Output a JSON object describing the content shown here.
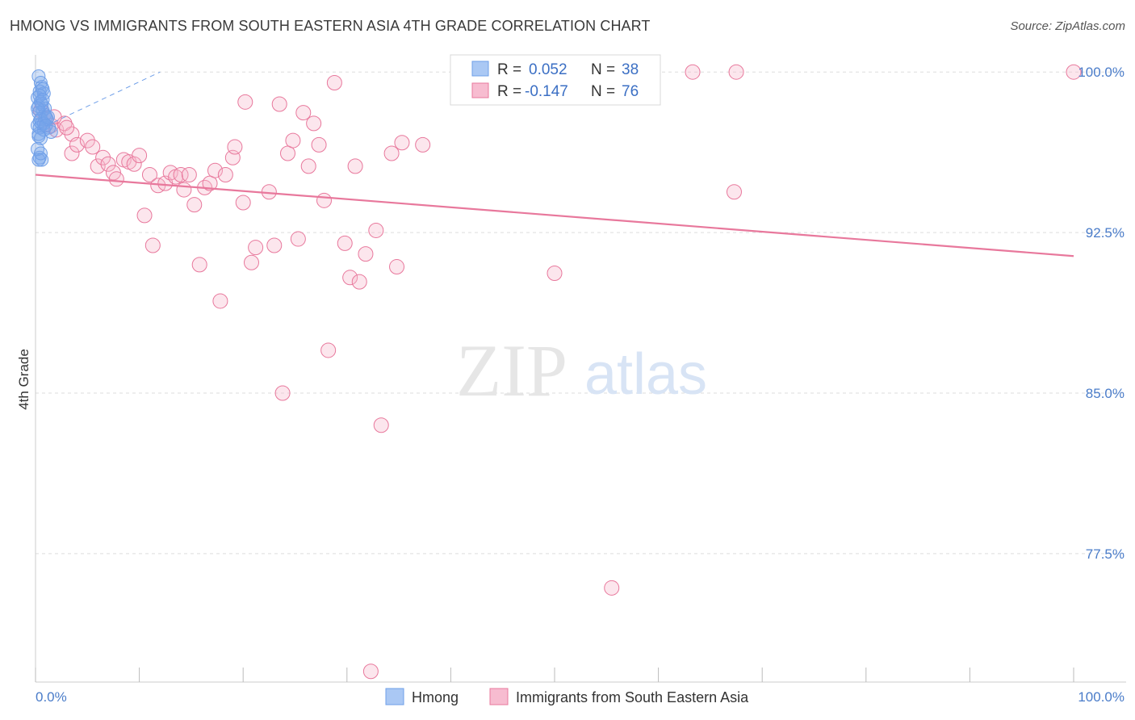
{
  "title": "HMONG VS IMMIGRANTS FROM SOUTH EASTERN ASIA 4TH GRADE CORRELATION CHART",
  "source": "Source: ZipAtlas.com",
  "watermark": {
    "zip": "ZIP",
    "atlas": "atlas"
  },
  "chart_data": {
    "type": "scatter",
    "title": "HMONG VS IMMIGRANTS FROM SOUTH EASTERN ASIA 4TH GRADE CORRELATION CHART",
    "xlabel": "",
    "ylabel": "4th Grade",
    "xlim": [
      0,
      100
    ],
    "ylim": [
      71.5,
      100.8
    ],
    "x_tick_labels": {
      "left": "0.0%",
      "right": "100.0%"
    },
    "y_ticks": [
      {
        "value": 100.0,
        "label": "100.0%"
      },
      {
        "value": 92.5,
        "label": "92.5%"
      },
      {
        "value": 85.0,
        "label": "85.0%"
      },
      {
        "value": 77.5,
        "label": "77.5%"
      }
    ],
    "grid": true,
    "legend": [
      {
        "name": "Hmong",
        "r_label": "R =",
        "r": "0.052",
        "n_label": "N =",
        "n": "38",
        "color": "#6f9fe8",
        "fill": "#aac8f4"
      },
      {
        "name": "Immigrants from South Eastern Asia",
        "r_label": "R =",
        "r": "-0.147",
        "n_label": "N =",
        "n": "76",
        "color": "#e8789c",
        "fill": "#f7bcd0"
      }
    ],
    "series": [
      {
        "name": "Hmong",
        "color": "#6f9fe8",
        "trend": {
          "x": [
            0.2,
            12
          ],
          "y": [
            97.3,
            100.0
          ],
          "style": "dashed"
        },
        "points": [
          [
            0.3,
            99.8
          ],
          [
            0.5,
            99.5
          ],
          [
            0.6,
            99.3
          ],
          [
            0.4,
            99.1
          ],
          [
            0.8,
            99.0
          ],
          [
            0.2,
            98.8
          ],
          [
            0.5,
            98.6
          ],
          [
            0.3,
            98.4
          ],
          [
            0.7,
            98.2
          ],
          [
            0.9,
            98.0
          ],
          [
            1.1,
            97.8
          ],
          [
            0.4,
            97.7
          ],
          [
            0.6,
            97.6
          ],
          [
            0.2,
            97.5
          ],
          [
            1.3,
            97.4
          ],
          [
            0.8,
            97.3
          ],
          [
            1.5,
            97.2
          ],
          [
            0.3,
            97.1
          ],
          [
            0.5,
            96.9
          ],
          [
            0.2,
            96.4
          ],
          [
            0.4,
            96.0
          ],
          [
            0.6,
            95.9
          ],
          [
            0.3,
            95.9
          ],
          [
            0.9,
            98.3
          ],
          [
            1.0,
            97.9
          ],
          [
            0.7,
            99.2
          ],
          [
            0.4,
            98.9
          ],
          [
            0.3,
            98.1
          ],
          [
            0.5,
            97.8
          ],
          [
            0.8,
            97.6
          ],
          [
            1.2,
            97.9
          ],
          [
            0.6,
            98.5
          ],
          [
            0.4,
            97.4
          ],
          [
            0.3,
            97.0
          ],
          [
            0.7,
            98.7
          ],
          [
            1.0,
            97.5
          ],
          [
            0.5,
            96.2
          ],
          [
            0.2,
            98.3
          ]
        ]
      },
      {
        "name": "Immigrants from South Eastern Asia",
        "color": "#e8789c",
        "trend": {
          "x": [
            0,
            100
          ],
          "y": [
            95.2,
            91.4
          ],
          "style": "solid"
        },
        "points": [
          [
            0.5,
            98.2
          ],
          [
            1.0,
            97.8
          ],
          [
            1.5,
            97.5
          ],
          [
            2.0,
            97.3
          ],
          [
            2.8,
            97.6
          ],
          [
            3.5,
            97.1
          ],
          [
            3.5,
            96.2
          ],
          [
            4.0,
            96.6
          ],
          [
            5.0,
            96.8
          ],
          [
            5.5,
            96.5
          ],
          [
            6.0,
            95.6
          ],
          [
            6.5,
            96.0
          ],
          [
            7.0,
            95.7
          ],
          [
            7.5,
            95.3
          ],
          [
            7.8,
            95.0
          ],
          [
            8.5,
            95.9
          ],
          [
            9.0,
            95.8
          ],
          [
            9.5,
            95.7
          ],
          [
            10.0,
            96.1
          ],
          [
            10.5,
            93.3
          ],
          [
            11.0,
            95.2
          ],
          [
            11.3,
            91.9
          ],
          [
            11.8,
            94.7
          ],
          [
            12.5,
            94.8
          ],
          [
            13.0,
            95.3
          ],
          [
            13.5,
            95.1
          ],
          [
            14.0,
            95.2
          ],
          [
            14.3,
            94.5
          ],
          [
            14.8,
            95.2
          ],
          [
            15.3,
            93.8
          ],
          [
            15.8,
            91.0
          ],
          [
            16.3,
            94.6
          ],
          [
            16.8,
            94.8
          ],
          [
            17.3,
            95.4
          ],
          [
            17.8,
            89.3
          ],
          [
            18.3,
            95.2
          ],
          [
            19.0,
            96.0
          ],
          [
            19.2,
            96.5
          ],
          [
            20.0,
            93.9
          ],
          [
            20.2,
            98.6
          ],
          [
            20.8,
            91.1
          ],
          [
            21.2,
            91.8
          ],
          [
            22.5,
            94.4
          ],
          [
            23.0,
            91.9
          ],
          [
            23.5,
            98.5
          ],
          [
            23.8,
            85.0
          ],
          [
            24.3,
            96.2
          ],
          [
            24.8,
            96.8
          ],
          [
            25.3,
            92.2
          ],
          [
            25.8,
            98.1
          ],
          [
            26.3,
            95.6
          ],
          [
            26.8,
            97.6
          ],
          [
            27.3,
            96.6
          ],
          [
            27.8,
            94.0
          ],
          [
            28.2,
            87.0
          ],
          [
            28.8,
            99.5
          ],
          [
            29.8,
            92.0
          ],
          [
            30.3,
            90.4
          ],
          [
            30.8,
            95.6
          ],
          [
            31.2,
            90.2
          ],
          [
            31.8,
            91.5
          ],
          [
            32.3,
            72.0
          ],
          [
            32.8,
            92.6
          ],
          [
            33.3,
            83.5
          ],
          [
            34.3,
            96.2
          ],
          [
            34.8,
            90.9
          ],
          [
            35.3,
            96.7
          ],
          [
            37.3,
            96.6
          ],
          [
            50.0,
            90.6
          ],
          [
            55.5,
            75.9
          ],
          [
            63.3,
            100.0
          ],
          [
            67.3,
            94.4
          ],
          [
            67.5,
            100.0
          ],
          [
            100.0,
            100.0
          ],
          [
            3.0,
            97.4
          ],
          [
            1.8,
            97.9
          ]
        ]
      }
    ]
  }
}
